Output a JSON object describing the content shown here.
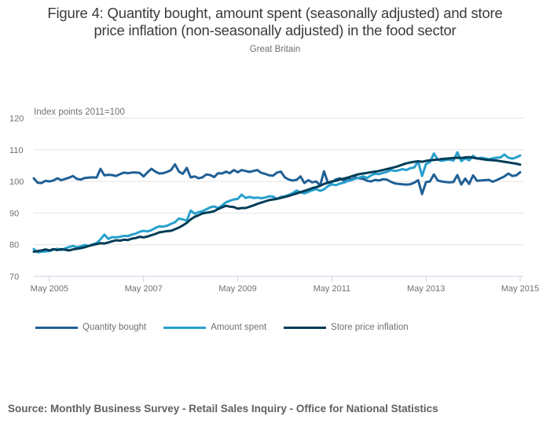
{
  "chart_data": {
    "type": "line",
    "title": "Figure 4: Quantity bought, amount spent (seasonally adjusted) and store price inflation (non-seasonally adjusted) in the food sector",
    "title_lines": [
      "Figure 4: Quantity bought, amount spent (seasonally adjusted) and store",
      "price inflation (non-seasonally adjusted) in the food sector"
    ],
    "subtitle": "Great Britain",
    "ylabel": "Index points 2011=100",
    "xlabel": "",
    "ylim": [
      70,
      120
    ],
    "yticks": [
      70,
      80,
      90,
      100,
      110,
      120
    ],
    "x_start": "Jan 2005",
    "x_end": "May 2015",
    "x_frequency": "monthly",
    "xticks": [
      {
        "label": "May 2005",
        "index": 4
      },
      {
        "label": "May 2007",
        "index": 28
      },
      {
        "label": "May 2009",
        "index": 52
      },
      {
        "label": "May 2011",
        "index": 76
      },
      {
        "label": "May 2013",
        "index": 100
      },
      {
        "label": "May 2015",
        "index": 124
      }
    ],
    "grid": true,
    "legend_position": "bottom-left",
    "series": [
      {
        "name": "Quantity bought",
        "color": "#206095",
        "values": [
          101.0,
          99.6,
          99.5,
          100.2,
          100.0,
          100.3,
          101.0,
          100.4,
          100.8,
          101.2,
          101.7,
          100.8,
          100.6,
          101.1,
          101.2,
          101.3,
          101.2,
          104.0,
          101.9,
          102.1,
          102.0,
          101.7,
          102.3,
          102.8,
          102.6,
          102.8,
          102.8,
          102.7,
          101.6,
          102.9,
          104.0,
          103.1,
          102.5,
          102.6,
          103.0,
          103.6,
          105.4,
          103.1,
          102.4,
          104.3,
          101.3,
          101.6,
          101.0,
          101.3,
          102.2,
          102.0,
          101.4,
          102.6,
          102.5,
          103.1,
          102.6,
          103.6,
          102.9,
          103.6,
          103.3,
          103.0,
          103.3,
          103.6,
          102.7,
          102.4,
          101.9,
          101.8,
          102.8,
          103.1,
          101.3,
          100.6,
          100.3,
          100.5,
          101.6,
          99.5,
          100.4,
          99.7,
          100.0,
          98.7,
          103.2,
          99.5,
          99.8,
          100.6,
          101.0,
          100.3,
          101.0,
          100.6,
          101.3,
          101.0,
          100.8,
          100.2,
          100.0,
          100.5,
          100.3,
          100.7,
          100.6,
          99.9,
          99.4,
          99.2,
          99.1,
          99.0,
          99.1,
          99.6,
          100.4,
          96.0,
          99.8,
          100.0,
          102.2,
          100.3,
          100.0,
          99.8,
          99.7,
          99.8,
          102.0,
          99.0,
          100.9,
          99.2,
          101.9,
          100.2,
          100.3,
          100.4,
          100.5,
          99.9,
          100.4,
          101.0,
          101.6,
          102.5,
          101.7,
          101.9,
          102.9
        ]
      },
      {
        "name": "Amount spent",
        "color": "#27a0cc",
        "values": [
          78.6,
          77.6,
          77.8,
          77.9,
          78.0,
          78.4,
          78.7,
          78.3,
          78.8,
          79.3,
          79.6,
          79.2,
          79.5,
          79.9,
          79.6,
          80.1,
          80.5,
          81.7,
          83.2,
          81.8,
          82.4,
          82.3,
          82.5,
          82.8,
          82.7,
          83.2,
          83.5,
          84.1,
          84.4,
          84.2,
          84.6,
          85.3,
          85.8,
          85.7,
          86.0,
          86.6,
          87.1,
          88.3,
          88.0,
          87.6,
          90.8,
          89.8,
          90.3,
          90.6,
          91.2,
          91.8,
          92.1,
          91.6,
          92.4,
          93.4,
          93.9,
          94.3,
          94.5,
          95.8,
          94.8,
          95.1,
          94.8,
          94.9,
          94.7,
          94.9,
          95.3,
          95.2,
          94.5,
          95.1,
          95.3,
          95.7,
          96.3,
          97.1,
          96.6,
          96.2,
          96.7,
          97.2,
          97.6,
          97.0,
          97.5,
          98.5,
          99.1,
          98.8,
          99.3,
          99.6,
          100.1,
          100.4,
          100.9,
          101.2,
          101.6,
          101.1,
          101.9,
          102.4,
          102.3,
          102.7,
          103.0,
          103.6,
          103.3,
          103.5,
          103.9,
          103.6,
          104.2,
          104.4,
          106.3,
          101.7,
          105.5,
          106.1,
          108.8,
          106.9,
          106.5,
          106.8,
          106.9,
          106.6,
          109.2,
          106.4,
          107.3,
          106.7,
          108.1,
          107.2,
          107.5,
          107.3,
          107.0,
          107.3,
          107.5,
          107.6,
          108.5,
          107.5,
          107.2,
          107.6,
          108.2
        ]
      },
      {
        "name": "Store price inflation",
        "color": "#003c57",
        "values": [
          77.8,
          78.0,
          78.2,
          78.5,
          78.2,
          78.6,
          78.3,
          78.6,
          78.4,
          78.2,
          78.5,
          78.7,
          78.9,
          79.2,
          79.6,
          79.9,
          80.2,
          80.5,
          80.4,
          80.7,
          81.1,
          81.4,
          81.3,
          81.6,
          81.5,
          81.9,
          82.1,
          82.5,
          82.3,
          82.6,
          83.0,
          83.4,
          83.9,
          84.1,
          84.3,
          84.4,
          84.9,
          85.4,
          86.1,
          86.9,
          88.0,
          88.8,
          89.3,
          89.9,
          90.1,
          90.3,
          90.6,
          91.3,
          91.8,
          92.3,
          92.0,
          91.9,
          91.4,
          91.6,
          91.6,
          92.0,
          92.4,
          92.9,
          93.3,
          93.7,
          94.1,
          94.3,
          94.5,
          94.8,
          95.1,
          95.4,
          95.8,
          96.2,
          96.6,
          97.0,
          97.4,
          97.9,
          98.2,
          98.6,
          99.2,
          99.6,
          100.0,
          100.2,
          100.6,
          100.9,
          101.2,
          101.6,
          102.0,
          102.3,
          102.5,
          102.7,
          102.9,
          103.1,
          103.3,
          103.6,
          103.9,
          104.2,
          104.5,
          104.9,
          105.3,
          105.7,
          106.0,
          106.2,
          106.4,
          106.2,
          106.5,
          106.7,
          106.8,
          106.9,
          107.1,
          107.2,
          107.3,
          107.4,
          107.5,
          107.4,
          107.6,
          107.7,
          107.5,
          107.3,
          107.1,
          106.9,
          106.8,
          106.7,
          106.6,
          106.4,
          106.2,
          106.0,
          105.8,
          105.6,
          105.3
        ]
      }
    ]
  },
  "source": "Source: Monthly Business Survey - Retail Sales Inquiry - Office for National Statistics"
}
